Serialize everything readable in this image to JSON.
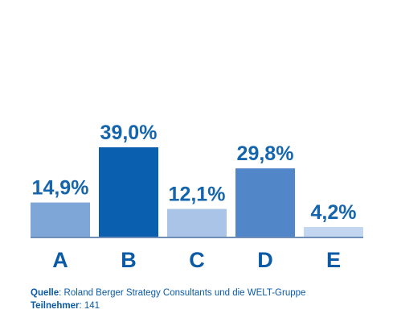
{
  "chart_data": {
    "type": "bar",
    "categories": [
      "A",
      "B",
      "C",
      "D",
      "E"
    ],
    "values": [
      14.9,
      39.0,
      12.1,
      29.8,
      4.2
    ],
    "value_labels": [
      "14,9%",
      "39,0%",
      "12,1%",
      "29,8%",
      "4,2%"
    ],
    "bar_colors": [
      "#7ea6d6",
      "#0a5fae",
      "#a9c4e6",
      "#5187c8",
      "#c2d6ef"
    ],
    "label_color": "#1565ad",
    "ylim": [
      0,
      39.0
    ],
    "grid": false,
    "title": "",
    "xlabel": "",
    "ylabel": ""
  },
  "footer": {
    "source_key": "Quelle",
    "source_text": ": Roland Berger Strategy Consultants und die WELT-Gruppe",
    "participants_key": "Teilnehmer",
    "participants_text": ": 141"
  }
}
